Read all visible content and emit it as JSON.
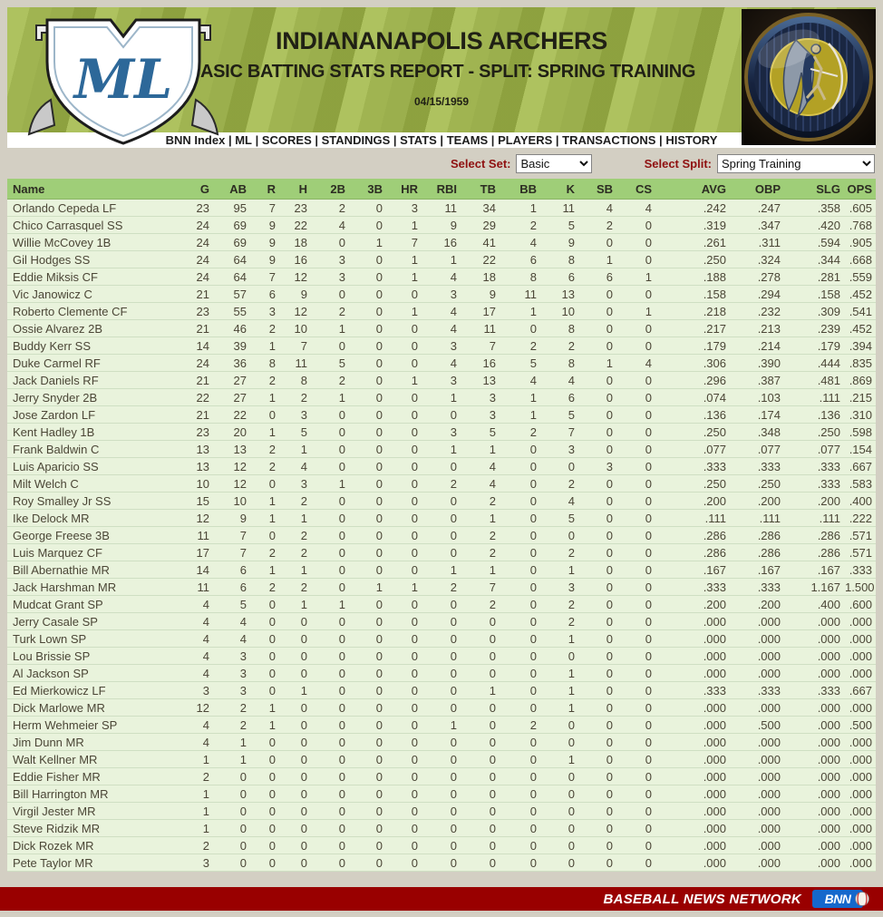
{
  "colors": {
    "page_bg": "#d3cfc3",
    "grass_light": "#a9be55",
    "grass_dark": "#95aa42",
    "table_header_bg": "#9fce78",
    "row_bg": "#e9f3dc",
    "footer_bg": "#990000",
    "filter_label_red": "#8f1010",
    "bnn_blue": "#1568cc",
    "monogram_blue": "#2d6899"
  },
  "header": {
    "team_name": "INDIANANAPOLIS ARCHERS",
    "report_title": "BASIC BATTING STATS REPORT - SPLIT: SPRING TRAINING",
    "date": "04/15/1959",
    "shield_monogram": "ML"
  },
  "nav": {
    "separator": "|",
    "items": [
      "BNN Index",
      "ML",
      "SCORES",
      "STANDINGS",
      "STATS",
      "TEAMS",
      "PLAYERS",
      "TRANSACTIONS",
      "HISTORY"
    ]
  },
  "filters": {
    "set_label": "Select Set:",
    "set_value": "Basic",
    "split_label": "Select Split:",
    "split_value": "Spring Training"
  },
  "table": {
    "columns": [
      "Name",
      "G",
      "AB",
      "R",
      "H",
      "2B",
      "3B",
      "HR",
      "RBI",
      "TB",
      "BB",
      "K",
      "SB",
      "CS",
      "AVG",
      "OBP",
      "SLG",
      "OPS"
    ],
    "rows": [
      [
        "Orlando Cepeda LF",
        23,
        95,
        7,
        23,
        2,
        0,
        3,
        11,
        34,
        1,
        11,
        4,
        4,
        ".242",
        ".247",
        ".358",
        ".605"
      ],
      [
        "Chico Carrasquel SS",
        24,
        69,
        9,
        22,
        4,
        0,
        1,
        9,
        29,
        2,
        5,
        2,
        0,
        ".319",
        ".347",
        ".420",
        ".768"
      ],
      [
        "Willie McCovey 1B",
        24,
        69,
        9,
        18,
        0,
        1,
        7,
        16,
        41,
        4,
        9,
        0,
        0,
        ".261",
        ".311",
        ".594",
        ".905"
      ],
      [
        "Gil Hodges SS",
        24,
        64,
        9,
        16,
        3,
        0,
        1,
        1,
        22,
        6,
        8,
        1,
        0,
        ".250",
        ".324",
        ".344",
        ".668"
      ],
      [
        "Eddie Miksis CF",
        24,
        64,
        7,
        12,
        3,
        0,
        1,
        4,
        18,
        8,
        6,
        6,
        1,
        ".188",
        ".278",
        ".281",
        ".559"
      ],
      [
        "Vic Janowicz C",
        21,
        57,
        6,
        9,
        0,
        0,
        0,
        3,
        9,
        11,
        13,
        0,
        0,
        ".158",
        ".294",
        ".158",
        ".452"
      ],
      [
        "Roberto Clemente CF",
        23,
        55,
        3,
        12,
        2,
        0,
        1,
        4,
        17,
        1,
        10,
        0,
        1,
        ".218",
        ".232",
        ".309",
        ".541"
      ],
      [
        "Ossie Alvarez 2B",
        21,
        46,
        2,
        10,
        1,
        0,
        0,
        4,
        11,
        0,
        8,
        0,
        0,
        ".217",
        ".213",
        ".239",
        ".452"
      ],
      [
        "Buddy Kerr SS",
        14,
        39,
        1,
        7,
        0,
        0,
        0,
        3,
        7,
        2,
        2,
        0,
        0,
        ".179",
        ".214",
        ".179",
        ".394"
      ],
      [
        "Duke Carmel RF",
        24,
        36,
        8,
        11,
        5,
        0,
        0,
        4,
        16,
        5,
        8,
        1,
        4,
        ".306",
        ".390",
        ".444",
        ".835"
      ],
      [
        "Jack Daniels RF",
        21,
        27,
        2,
        8,
        2,
        0,
        1,
        3,
        13,
        4,
        4,
        0,
        0,
        ".296",
        ".387",
        ".481",
        ".869"
      ],
      [
        "Jerry Snyder 2B",
        22,
        27,
        1,
        2,
        1,
        0,
        0,
        1,
        3,
        1,
        6,
        0,
        0,
        ".074",
        ".103",
        ".111",
        ".215"
      ],
      [
        "Jose Zardon LF",
        21,
        22,
        0,
        3,
        0,
        0,
        0,
        0,
        3,
        1,
        5,
        0,
        0,
        ".136",
        ".174",
        ".136",
        ".310"
      ],
      [
        "Kent Hadley 1B",
        23,
        20,
        1,
        5,
        0,
        0,
        0,
        3,
        5,
        2,
        7,
        0,
        0,
        ".250",
        ".348",
        ".250",
        ".598"
      ],
      [
        "Frank Baldwin C",
        13,
        13,
        2,
        1,
        0,
        0,
        0,
        1,
        1,
        0,
        3,
        0,
        0,
        ".077",
        ".077",
        ".077",
        ".154"
      ],
      [
        "Luis Aparicio SS",
        13,
        12,
        2,
        4,
        0,
        0,
        0,
        0,
        4,
        0,
        0,
        3,
        0,
        ".333",
        ".333",
        ".333",
        ".667"
      ],
      [
        "Milt Welch C",
        10,
        12,
        0,
        3,
        1,
        0,
        0,
        2,
        4,
        0,
        2,
        0,
        0,
        ".250",
        ".250",
        ".333",
        ".583"
      ],
      [
        "Roy Smalley Jr SS",
        15,
        10,
        1,
        2,
        0,
        0,
        0,
        0,
        2,
        0,
        4,
        0,
        0,
        ".200",
        ".200",
        ".200",
        ".400"
      ],
      [
        "Ike Delock MR",
        12,
        9,
        1,
        1,
        0,
        0,
        0,
        0,
        1,
        0,
        5,
        0,
        0,
        ".111",
        ".111",
        ".111",
        ".222"
      ],
      [
        "George Freese 3B",
        11,
        7,
        0,
        2,
        0,
        0,
        0,
        0,
        2,
        0,
        0,
        0,
        0,
        ".286",
        ".286",
        ".286",
        ".571"
      ],
      [
        "Luis Marquez CF",
        17,
        7,
        2,
        2,
        0,
        0,
        0,
        0,
        2,
        0,
        2,
        0,
        0,
        ".286",
        ".286",
        ".286",
        ".571"
      ],
      [
        "Bill Abernathie MR",
        14,
        6,
        1,
        1,
        0,
        0,
        0,
        1,
        1,
        0,
        1,
        0,
        0,
        ".167",
        ".167",
        ".167",
        ".333"
      ],
      [
        "Jack Harshman MR",
        11,
        6,
        2,
        2,
        0,
        1,
        1,
        2,
        7,
        0,
        3,
        0,
        0,
        ".333",
        ".333",
        "1.167",
        "1.500"
      ],
      [
        "Mudcat Grant SP",
        4,
        5,
        0,
        1,
        1,
        0,
        0,
        0,
        2,
        0,
        2,
        0,
        0,
        ".200",
        ".200",
        ".400",
        ".600"
      ],
      [
        "Jerry Casale SP",
        4,
        4,
        0,
        0,
        0,
        0,
        0,
        0,
        0,
        0,
        2,
        0,
        0,
        ".000",
        ".000",
        ".000",
        ".000"
      ],
      [
        "Turk Lown SP",
        4,
        4,
        0,
        0,
        0,
        0,
        0,
        0,
        0,
        0,
        1,
        0,
        0,
        ".000",
        ".000",
        ".000",
        ".000"
      ],
      [
        "Lou Brissie SP",
        4,
        3,
        0,
        0,
        0,
        0,
        0,
        0,
        0,
        0,
        0,
        0,
        0,
        ".000",
        ".000",
        ".000",
        ".000"
      ],
      [
        "Al Jackson SP",
        4,
        3,
        0,
        0,
        0,
        0,
        0,
        0,
        0,
        0,
        1,
        0,
        0,
        ".000",
        ".000",
        ".000",
        ".000"
      ],
      [
        "Ed Mierkowicz LF",
        3,
        3,
        0,
        1,
        0,
        0,
        0,
        0,
        1,
        0,
        1,
        0,
        0,
        ".333",
        ".333",
        ".333",
        ".667"
      ],
      [
        "Dick Marlowe MR",
        12,
        2,
        1,
        0,
        0,
        0,
        0,
        0,
        0,
        0,
        1,
        0,
        0,
        ".000",
        ".000",
        ".000",
        ".000"
      ],
      [
        "Herm Wehmeier SP",
        4,
        2,
        1,
        0,
        0,
        0,
        0,
        1,
        0,
        2,
        0,
        0,
        0,
        ".000",
        ".500",
        ".000",
        ".500"
      ],
      [
        "Jim Dunn MR",
        4,
        1,
        0,
        0,
        0,
        0,
        0,
        0,
        0,
        0,
        0,
        0,
        0,
        ".000",
        ".000",
        ".000",
        ".000"
      ],
      [
        "Walt Kellner MR",
        1,
        1,
        0,
        0,
        0,
        0,
        0,
        0,
        0,
        0,
        1,
        0,
        0,
        ".000",
        ".000",
        ".000",
        ".000"
      ],
      [
        "Eddie Fisher MR",
        2,
        0,
        0,
        0,
        0,
        0,
        0,
        0,
        0,
        0,
        0,
        0,
        0,
        ".000",
        ".000",
        ".000",
        ".000"
      ],
      [
        "Bill Harrington MR",
        1,
        0,
        0,
        0,
        0,
        0,
        0,
        0,
        0,
        0,
        0,
        0,
        0,
        ".000",
        ".000",
        ".000",
        ".000"
      ],
      [
        "Virgil Jester MR",
        1,
        0,
        0,
        0,
        0,
        0,
        0,
        0,
        0,
        0,
        0,
        0,
        0,
        ".000",
        ".000",
        ".000",
        ".000"
      ],
      [
        "Steve Ridzik MR",
        1,
        0,
        0,
        0,
        0,
        0,
        0,
        0,
        0,
        0,
        0,
        0,
        0,
        ".000",
        ".000",
        ".000",
        ".000"
      ],
      [
        "Dick Rozek MR",
        2,
        0,
        0,
        0,
        0,
        0,
        0,
        0,
        0,
        0,
        0,
        0,
        0,
        ".000",
        ".000",
        ".000",
        ".000"
      ],
      [
        "Pete Taylor MR",
        3,
        0,
        0,
        0,
        0,
        0,
        0,
        0,
        0,
        0,
        0,
        0,
        0,
        ".000",
        ".000",
        ".000",
        ".000"
      ]
    ]
  },
  "footer": {
    "network_name": "BASEBALL NEWS NETWORK",
    "logo_text": "BNN"
  }
}
